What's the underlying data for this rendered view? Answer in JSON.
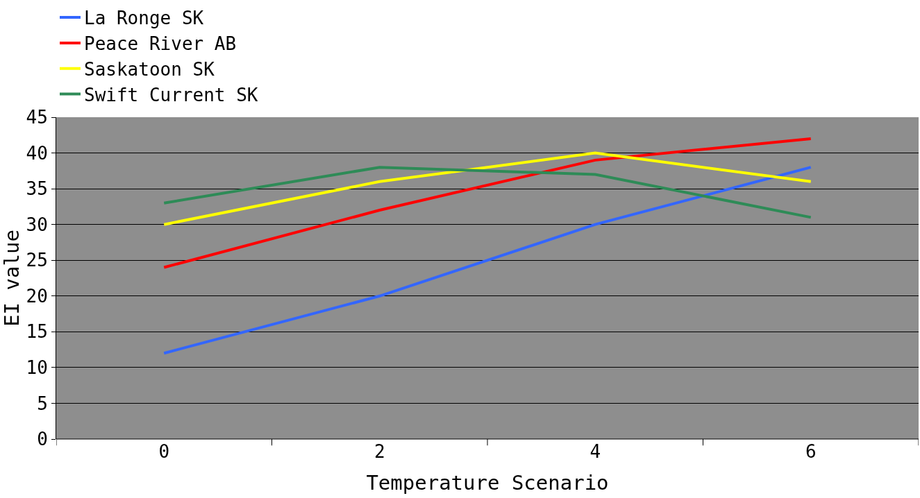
{
  "chart_data": {
    "type": "line",
    "xlabel": "Temperature Scenario",
    "ylabel": "EI value",
    "categories": [
      "0",
      "2",
      "4",
      "6"
    ],
    "series": [
      {
        "name": "La Ronge SK",
        "color": "#3366ff",
        "values": [
          12,
          20,
          30,
          38
        ]
      },
      {
        "name": "Peace River AB",
        "color": "#ff0000",
        "values": [
          24,
          32,
          39,
          42
        ]
      },
      {
        "name": "Saskatoon SK",
        "color": "#ffff00",
        "values": [
          30,
          36,
          40,
          36
        ]
      },
      {
        "name": "Swift Current SK",
        "color": "#2e8b57",
        "values": [
          33,
          38,
          37,
          31
        ]
      }
    ],
    "ylim": [
      0,
      45
    ],
    "yticks": [
      0,
      5,
      10,
      15,
      20,
      25,
      30,
      35,
      40,
      45
    ],
    "grid": "y",
    "legend": "top",
    "marker": "none",
    "line_style": "solid"
  }
}
